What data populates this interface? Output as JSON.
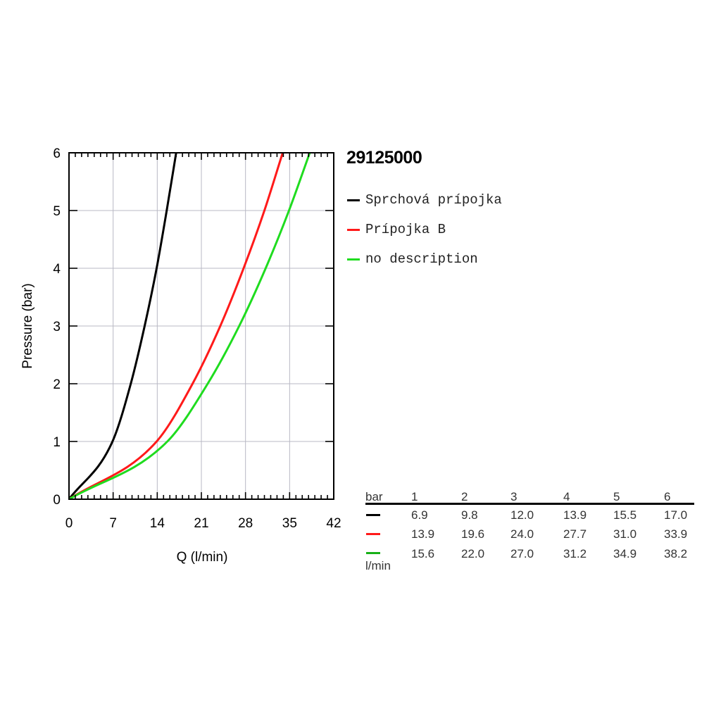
{
  "product_code": "29125000",
  "legend": [
    {
      "label": "Sprchová prípojka",
      "color": "#000000"
    },
    {
      "label": "Prípojka B",
      "color": "#ff1a1a"
    },
    {
      "label": "no description",
      "color": "#1fdc1f"
    }
  ],
  "table": {
    "header_label": "bar",
    "unit_label": "l/min",
    "columns": [
      "1",
      "2",
      "3",
      "4",
      "5",
      "6"
    ],
    "rows": [
      {
        "color": "#000000",
        "values": [
          "6.9",
          "9.8",
          "12.0",
          "13.9",
          "15.5",
          "17.0"
        ]
      },
      {
        "color": "#ff1a1a",
        "values": [
          "13.9",
          "19.6",
          "24.0",
          "27.7",
          "31.0",
          "33.9"
        ]
      },
      {
        "color": "#17b017",
        "values": [
          "15.6",
          "22.0",
          "27.0",
          "31.2",
          "34.9",
          "38.2"
        ]
      }
    ]
  },
  "chart_data": {
    "type": "line",
    "xlabel": "Q (l/min)",
    "ylabel": "Pressure (bar)",
    "xlim": [
      0,
      42
    ],
    "ylim": [
      0,
      6
    ],
    "x_ticks": [
      0,
      7,
      14,
      21,
      28,
      35,
      42
    ],
    "y_ticks": [
      0,
      1,
      2,
      3,
      4,
      5,
      6
    ],
    "grid": true,
    "legend_position": "right",
    "series": [
      {
        "name": "Sprchová prípojka",
        "color": "#000000",
        "points": [
          [
            0,
            0
          ],
          [
            6.9,
            1
          ],
          [
            9.8,
            2
          ],
          [
            12.0,
            3
          ],
          [
            13.9,
            4
          ],
          [
            15.5,
            5
          ],
          [
            17.0,
            6
          ]
        ]
      },
      {
        "name": "Prípojka B",
        "color": "#ff1a1a",
        "points": [
          [
            0,
            0
          ],
          [
            13.9,
            1
          ],
          [
            19.6,
            2
          ],
          [
            24.0,
            3
          ],
          [
            27.7,
            4
          ],
          [
            31.0,
            5
          ],
          [
            33.9,
            6
          ]
        ]
      },
      {
        "name": "no description",
        "color": "#1fdc1f",
        "points": [
          [
            0,
            0
          ],
          [
            15.6,
            1
          ],
          [
            22.0,
            2
          ],
          [
            27.0,
            3
          ],
          [
            31.2,
            4
          ],
          [
            34.9,
            5
          ],
          [
            38.2,
            6
          ]
        ]
      }
    ]
  }
}
